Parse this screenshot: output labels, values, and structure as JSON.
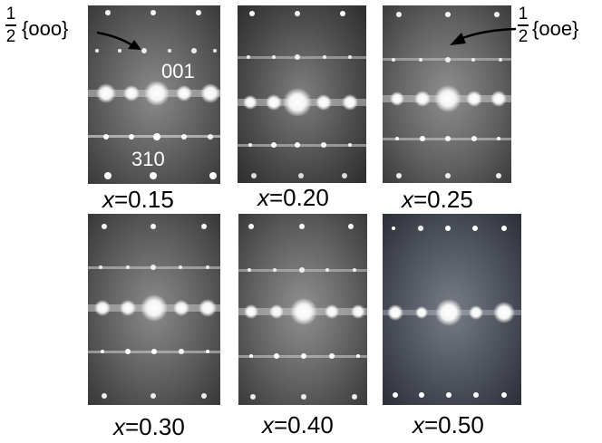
{
  "panels": [
    {
      "variable": "x",
      "value": "=0.15"
    },
    {
      "variable": "x",
      "value": "=0.20"
    },
    {
      "variable": "x",
      "value": "=0.25"
    },
    {
      "variable": "x",
      "value": "=0.30"
    },
    {
      "variable": "x",
      "value": "=0.40"
    },
    {
      "variable": "x",
      "value": "=0.50"
    }
  ],
  "annotations": {
    "label_left": {
      "numerator": "1",
      "denominator": "2",
      "text": "{ooo}"
    },
    "label_right": {
      "numerator": "1",
      "denominator": "2",
      "text": "{ooe}"
    },
    "spot_001": "001",
    "spot_310": "310"
  },
  "colors": {
    "pattern_spot": "#ffffff",
    "arrow": "#000000",
    "background": "#ffffff"
  }
}
